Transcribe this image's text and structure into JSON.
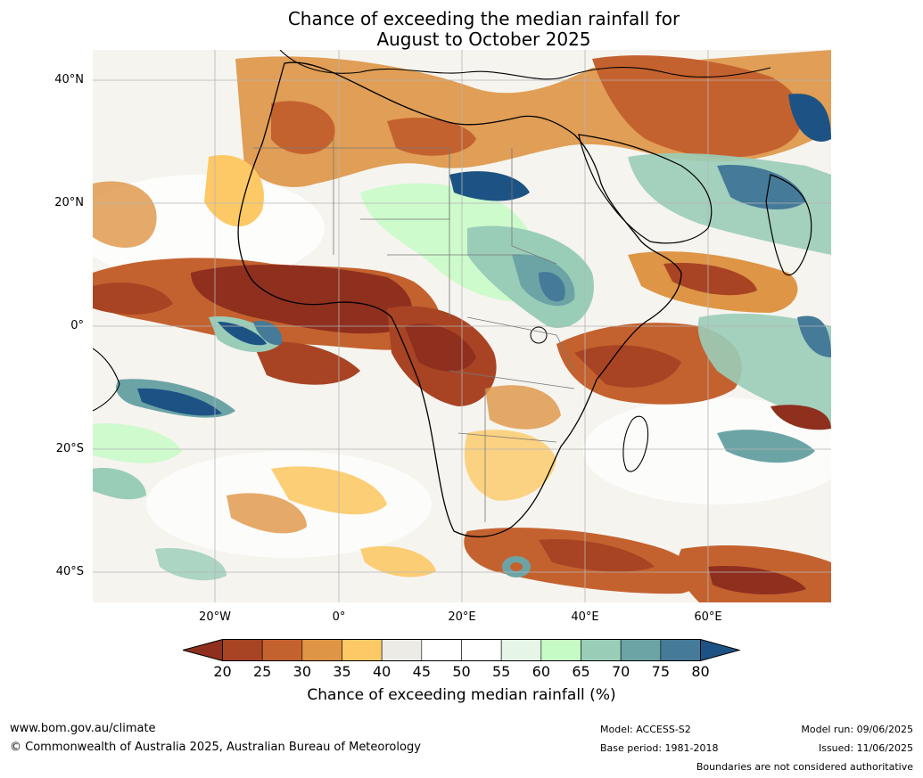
{
  "title": {
    "line1": "Chance of exceeding the median rainfall for",
    "line2": "August to October 2025"
  },
  "map": {
    "lat_labels": [
      "40°N",
      "20°N",
      "0°",
      "20°S",
      "40°S"
    ],
    "lon_labels": [
      "20°W",
      "0°",
      "20°E",
      "40°E",
      "60°E"
    ]
  },
  "colorbar": {
    "ticks": [
      "20",
      "25",
      "30",
      "35",
      "40",
      "45",
      "50",
      "55",
      "60",
      "65",
      "70",
      "75",
      "80"
    ],
    "colors": [
      "#8f2f1e",
      "#a84424",
      "#c4622f",
      "#de9545",
      "#fcc966",
      "#edebe6",
      "#ffffff",
      "#ffffff",
      "#e5f5e6",
      "#c6fbc6",
      "#9acdb8",
      "#6ca4a6",
      "#457a98",
      "#1d5384"
    ],
    "label": "Chance of exceeding median rainfall (%)"
  },
  "footer": {
    "website": "www.bom.gov.au/climate",
    "copyright": "© Commonwealth of Australia 2025, Australian Bureau of Meteorology",
    "model": "Model: ACCESS-S2",
    "base_period": "Base period: 1981-2018",
    "model_run": "Model run: 09/06/2025",
    "issued": "Issued: 11/06/2025",
    "disclaimer": "Boundaries are not considered authoritative"
  }
}
